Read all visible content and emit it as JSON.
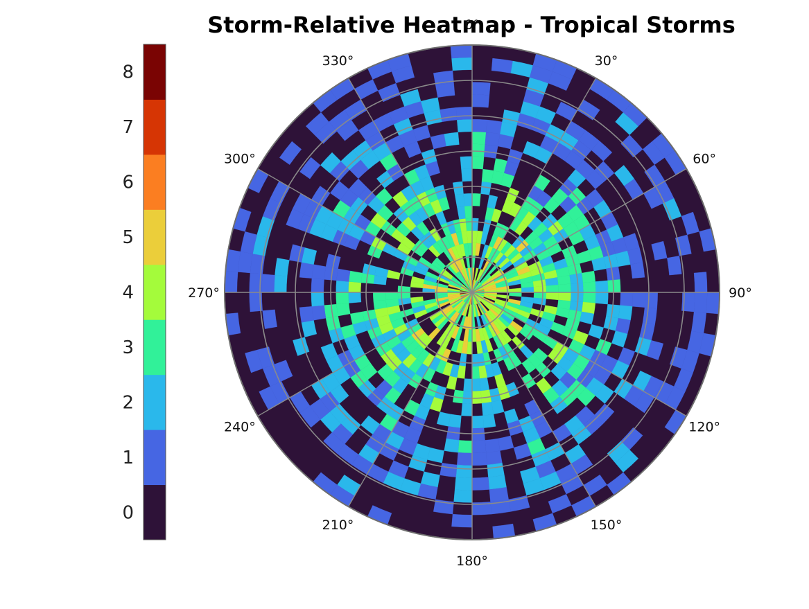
{
  "chart_data": {
    "type": "heatmap",
    "projection": "polar",
    "title": "Storm-Relative Heatmap - Tropical Storms",
    "angular_ticks": [
      "0°",
      "30°",
      "60°",
      "90°",
      "120°",
      "150°",
      "180°",
      "210°",
      "240°",
      "270°",
      "300°",
      "330°"
    ],
    "angular_tick_values": [
      0,
      30,
      60,
      90,
      120,
      150,
      180,
      210,
      240,
      270,
      300,
      330
    ],
    "theta_zero_location": "top",
    "theta_direction": "clockwise",
    "radial_rings": 7,
    "radial_ticks_shown": false,
    "grid": true,
    "angular_bins": 72,
    "radial_bins": 20,
    "value_range": [
      0,
      8
    ],
    "colorbar": {
      "location": "left",
      "ticks": [
        "0",
        "1",
        "2",
        "3",
        "4",
        "5",
        "6",
        "7",
        "8"
      ],
      "colors": [
        "#2e1238",
        "#4666e3",
        "#2ab8eb",
        "#31f199",
        "#a4fb3b",
        "#ebce3a",
        "#fb7e21",
        "#d63504",
        "#7a0403"
      ]
    },
    "description_of_values": "Counts per polar bin; values decrease with radius from center (center mostly 1-5, outer rings mostly 0-1)",
    "sample_cell_values": {
      "inner_rings_typical": [
        1,
        2,
        3,
        4,
        5
      ],
      "outer_rings_typical": [
        0,
        1
      ],
      "maximum_observed": 6
    }
  }
}
